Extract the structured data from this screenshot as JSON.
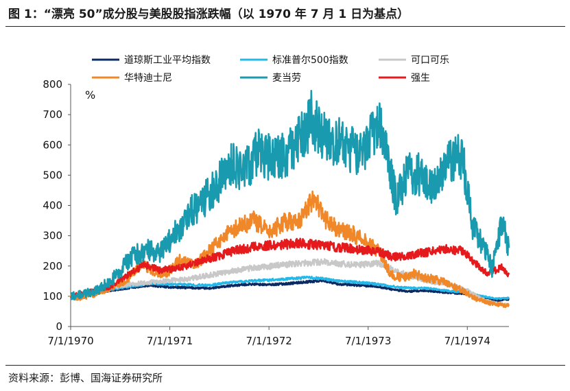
{
  "title": "图 1：“漂亮 50”成分股与美股股指涨跌幅（以 1970 年 7 月 1 日为基点）",
  "source": "资料来源：彭博、国海证券研究所",
  "chart_data": {
    "type": "line",
    "ylabel": "%",
    "ylim": [
      0,
      800
    ],
    "yticks": [
      0,
      100,
      200,
      300,
      400,
      500,
      600,
      700,
      800
    ],
    "xlim": [
      1970.5,
      1974.92
    ],
    "xticks": [
      {
        "label": "7/1/1970",
        "t": 1970.5
      },
      {
        "label": "7/1/1971",
        "t": 1971.5
      },
      {
        "label": "7/1/1972",
        "t": 1972.5
      },
      {
        "label": "7/1/1973",
        "t": 1973.5
      },
      {
        "label": "7/1/1974",
        "t": 1974.5
      }
    ],
    "legend_position": "top",
    "series": [
      {
        "name": "道琼斯工业平均指数",
        "color": "#0b2a63",
        "points": [
          [
            1970.5,
            98
          ],
          [
            1970.7,
            110
          ],
          [
            1970.9,
            118
          ],
          [
            1971.1,
            128
          ],
          [
            1971.3,
            136
          ],
          [
            1971.5,
            130
          ],
          [
            1971.7,
            128
          ],
          [
            1971.9,
            126
          ],
          [
            1972.1,
            134
          ],
          [
            1972.3,
            140
          ],
          [
            1972.5,
            138
          ],
          [
            1972.7,
            142
          ],
          [
            1972.9,
            148
          ],
          [
            1973.05,
            152
          ],
          [
            1973.2,
            140
          ],
          [
            1973.4,
            136
          ],
          [
            1973.6,
            132
          ],
          [
            1973.75,
            122
          ],
          [
            1973.9,
            116
          ],
          [
            1974.1,
            118
          ],
          [
            1974.3,
            112
          ],
          [
            1974.5,
            108
          ],
          [
            1974.65,
            96
          ],
          [
            1974.8,
            86
          ],
          [
            1974.92,
            90
          ]
        ]
      },
      {
        "name": "标准普尔500指数",
        "color": "#24b8e8",
        "points": [
          [
            1970.5,
            100
          ],
          [
            1970.7,
            112
          ],
          [
            1970.9,
            122
          ],
          [
            1971.1,
            132
          ],
          [
            1971.3,
            142
          ],
          [
            1971.5,
            140
          ],
          [
            1971.7,
            138
          ],
          [
            1971.9,
            136
          ],
          [
            1972.1,
            146
          ],
          [
            1972.3,
            150
          ],
          [
            1972.5,
            154
          ],
          [
            1972.7,
            158
          ],
          [
            1972.9,
            162
          ],
          [
            1973.05,
            158
          ],
          [
            1973.2,
            150
          ],
          [
            1973.4,
            146
          ],
          [
            1973.6,
            140
          ],
          [
            1973.75,
            132
          ],
          [
            1973.9,
            128
          ],
          [
            1974.1,
            126
          ],
          [
            1974.3,
            118
          ],
          [
            1974.5,
            112
          ],
          [
            1974.65,
            100
          ],
          [
            1974.8,
            92
          ],
          [
            1974.92,
            94
          ]
        ]
      },
      {
        "name": "可口可乐",
        "color": "#c8c8c8",
        "points": [
          [
            1970.5,
            100
          ],
          [
            1970.7,
            112
          ],
          [
            1970.9,
            128
          ],
          [
            1971.1,
            140
          ],
          [
            1971.3,
            146
          ],
          [
            1971.5,
            152
          ],
          [
            1971.7,
            158
          ],
          [
            1971.9,
            170
          ],
          [
            1972.1,
            182
          ],
          [
            1972.3,
            192
          ],
          [
            1972.5,
            198
          ],
          [
            1972.7,
            206
          ],
          [
            1972.9,
            210
          ],
          [
            1973.05,
            214
          ],
          [
            1973.2,
            208
          ],
          [
            1973.4,
            204
          ],
          [
            1973.6,
            210
          ],
          [
            1973.75,
            188
          ],
          [
            1973.9,
            170
          ],
          [
            1974.1,
            150
          ],
          [
            1974.3,
            140
          ],
          [
            1974.5,
            120
          ],
          [
            1974.65,
            90
          ],
          [
            1974.8,
            76
          ],
          [
            1974.92,
            72
          ]
        ]
      },
      {
        "name": "华特迪士尼",
        "color": "#f0882a",
        "points": [
          [
            1970.5,
            100
          ],
          [
            1970.6,
            92
          ],
          [
            1970.75,
            108
          ],
          [
            1970.9,
            128
          ],
          [
            1971.05,
            150
          ],
          [
            1971.2,
            205
          ],
          [
            1971.3,
            190
          ],
          [
            1971.45,
            170
          ],
          [
            1971.6,
            220
          ],
          [
            1971.75,
            200
          ],
          [
            1971.9,
            250
          ],
          [
            1972.05,
            300
          ],
          [
            1972.2,
            330
          ],
          [
            1972.35,
            350
          ],
          [
            1972.5,
            310
          ],
          [
            1972.65,
            345
          ],
          [
            1972.8,
            350
          ],
          [
            1972.9,
            400
          ],
          [
            1972.97,
            425
          ],
          [
            1973.05,
            360
          ],
          [
            1973.2,
            320
          ],
          [
            1973.35,
            305
          ],
          [
            1973.5,
            275
          ],
          [
            1973.62,
            245
          ],
          [
            1973.73,
            170
          ],
          [
            1973.85,
            160
          ],
          [
            1973.95,
            175
          ],
          [
            1974.1,
            160
          ],
          [
            1974.25,
            150
          ],
          [
            1974.45,
            120
          ],
          [
            1974.6,
            90
          ],
          [
            1974.75,
            75
          ],
          [
            1974.92,
            68
          ]
        ]
      },
      {
        "name": "麦当劳",
        "color": "#1a9aae",
        "points": [
          [
            1970.5,
            100
          ],
          [
            1970.65,
            108
          ],
          [
            1970.8,
            125
          ],
          [
            1970.95,
            165
          ],
          [
            1971.1,
            225
          ],
          [
            1971.25,
            255
          ],
          [
            1971.4,
            240
          ],
          [
            1971.55,
            305
          ],
          [
            1971.7,
            375
          ],
          [
            1971.85,
            420
          ],
          [
            1972.0,
            480
          ],
          [
            1972.1,
            540
          ],
          [
            1972.25,
            520
          ],
          [
            1972.4,
            575
          ],
          [
            1972.55,
            550
          ],
          [
            1972.7,
            580
          ],
          [
            1972.85,
            630
          ],
          [
            1972.93,
            690
          ],
          [
            1973.0,
            640
          ],
          [
            1973.15,
            620
          ],
          [
            1973.3,
            590
          ],
          [
            1973.45,
            580
          ],
          [
            1973.55,
            635
          ],
          [
            1973.65,
            660
          ],
          [
            1973.78,
            420
          ],
          [
            1973.9,
            510
          ],
          [
            1974.05,
            500
          ],
          [
            1974.15,
            470
          ],
          [
            1974.25,
            510
          ],
          [
            1974.35,
            550
          ],
          [
            1974.45,
            570
          ],
          [
            1974.55,
            330
          ],
          [
            1974.68,
            260
          ],
          [
            1974.75,
            190
          ],
          [
            1974.85,
            345
          ],
          [
            1974.92,
            260
          ]
        ]
      },
      {
        "name": "强生",
        "color": "#e41a1c",
        "points": [
          [
            1970.5,
            100
          ],
          [
            1970.7,
            118
          ],
          [
            1970.9,
            130
          ],
          [
            1971.1,
            175
          ],
          [
            1971.25,
            205
          ],
          [
            1971.4,
            185
          ],
          [
            1971.6,
            195
          ],
          [
            1971.8,
            215
          ],
          [
            1972.0,
            235
          ],
          [
            1972.2,
            255
          ],
          [
            1972.4,
            265
          ],
          [
            1972.6,
            270
          ],
          [
            1972.8,
            275
          ],
          [
            1973.0,
            270
          ],
          [
            1973.2,
            262
          ],
          [
            1973.4,
            255
          ],
          [
            1973.6,
            248
          ],
          [
            1973.75,
            230
          ],
          [
            1973.9,
            235
          ],
          [
            1974.1,
            245
          ],
          [
            1974.3,
            255
          ],
          [
            1974.45,
            250
          ],
          [
            1974.55,
            220
          ],
          [
            1974.7,
            175
          ],
          [
            1974.85,
            195
          ],
          [
            1974.92,
            172
          ]
        ]
      }
    ]
  }
}
